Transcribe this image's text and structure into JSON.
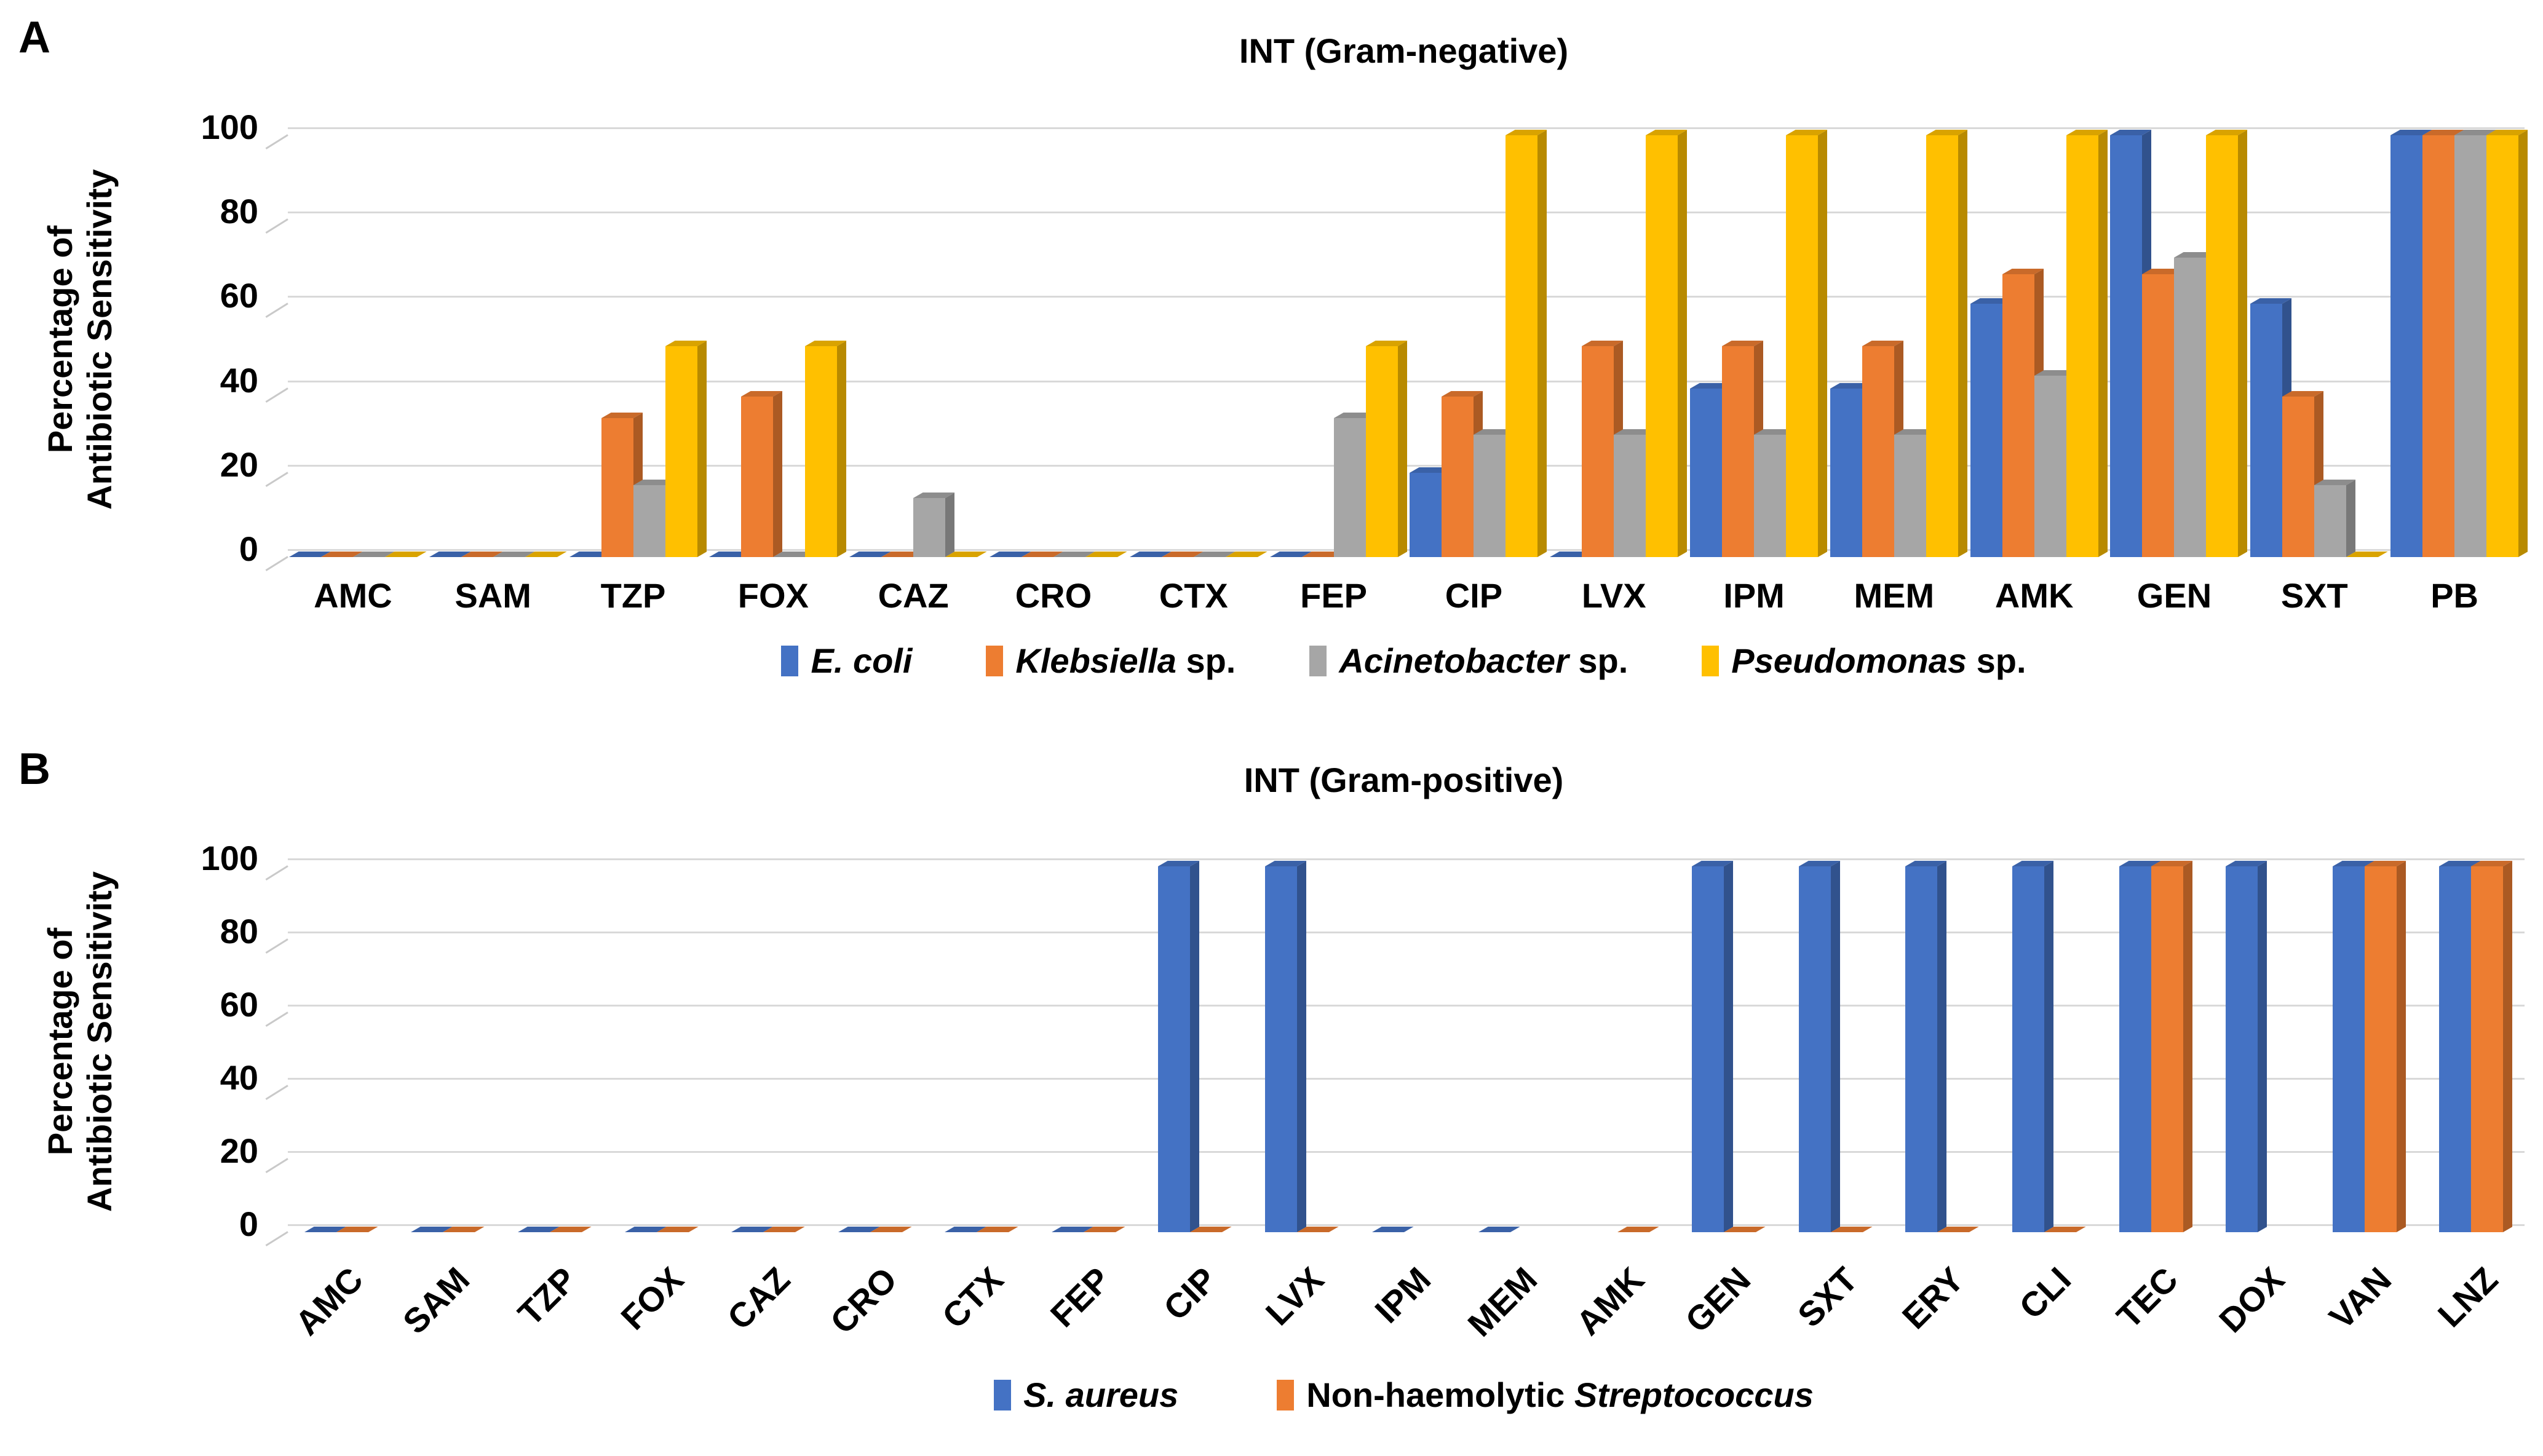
{
  "panels": [
    {
      "label": "A",
      "title": "INT (Gram-negative)",
      "y_axis_title_line1": "Percentage of",
      "y_axis_title_line2": "Antibiotic Sensitivity",
      "legend": [
        {
          "pre": "",
          "em": "E. coli",
          "post": ""
        },
        {
          "pre": "",
          "em": "Klebsiella",
          "post": " sp."
        },
        {
          "pre": "",
          "em": "Acinetobacter",
          "post": " sp."
        },
        {
          "pre": "",
          "em": "Pseudomonas",
          "post": " sp."
        }
      ],
      "chart_data": {
        "type": "bar",
        "title": "INT (Gram-negative)",
        "ylabel": "Percentage of Antibiotic Sensitivity",
        "xlabel": "",
        "ylim": [
          0,
          100
        ],
        "yticks": [
          0,
          20,
          40,
          60,
          80,
          100
        ],
        "grid": true,
        "legend_position": "bottom",
        "style": "3d-clustered-column",
        "categories": [
          "AMC",
          "SAM",
          "TZP",
          "FOX",
          "CAZ",
          "CRO",
          "CTX",
          "FEP",
          "CIP",
          "LVX",
          "IPM",
          "MEM",
          "AMK",
          "GEN",
          "SXT",
          "PB"
        ],
        "series": [
          {
            "name": "E. coli",
            "color": "#4472C4",
            "values": [
              0,
              0,
              0,
              0,
              0,
              0,
              0,
              0,
              20,
              0,
              40,
              40,
              60,
              100,
              60,
              100
            ]
          },
          {
            "name": "Klebsiella sp.",
            "color": "#ED7D31",
            "values": [
              0,
              0,
              33,
              38,
              0,
              0,
              0,
              0,
              38,
              50,
              50,
              50,
              67,
              67,
              38,
              100
            ]
          },
          {
            "name": "Acinetobacter sp.",
            "color": "#A6A6A6",
            "values": [
              0,
              0,
              17,
              0,
              14,
              0,
              0,
              33,
              29,
              29,
              29,
              29,
              43,
              71,
              17,
              100
            ]
          },
          {
            "name": "Pseudomonas sp.",
            "color": "#FFC000",
            "values": [
              0,
              0,
              50,
              50,
              0,
              0,
              0,
              50,
              100,
              100,
              100,
              100,
              100,
              100,
              0,
              100
            ]
          }
        ]
      }
    },
    {
      "label": "B",
      "title": "INT (Gram-positive)",
      "y_axis_title_line1": "Percentage of",
      "y_axis_title_line2": "Antibiotic Sensitivity",
      "legend": [
        {
          "pre": "",
          "em": "S. aureus",
          "post": ""
        },
        {
          "pre": "Non-haemolytic ",
          "em": "Streptococcus",
          "post": ""
        }
      ],
      "chart_data": {
        "type": "bar",
        "title": "INT (Gram-positive)",
        "ylabel": "Percentage of Antibiotic Sensitivity",
        "xlabel": "",
        "ylim": [
          0,
          100
        ],
        "yticks": [
          0,
          20,
          40,
          60,
          80,
          100
        ],
        "grid": true,
        "legend_position": "bottom",
        "style": "3d-clustered-column",
        "categories": [
          "AMC",
          "SAM",
          "TZP",
          "FOX",
          "CAZ",
          "CRO",
          "CTX",
          "FEP",
          "CIP",
          "LVX",
          "IPM",
          "MEM",
          "AMK",
          "GEN",
          "SXT",
          "ERY",
          "CLI",
          "TEC",
          "DOX",
          "VAN",
          "LNZ"
        ],
        "series": [
          {
            "name": "S. aureus",
            "color": "#4472C4",
            "values": [
              0,
              0,
              0,
              0,
              0,
              0,
              0,
              0,
              100,
              100,
              0,
              0,
              null,
              100,
              100,
              100,
              100,
              100,
              100,
              100,
              100
            ]
          },
          {
            "name": "Non-haemolytic Streptococcus",
            "color": "#ED7D31",
            "values": [
              0,
              0,
              0,
              0,
              0,
              0,
              0,
              0,
              0,
              0,
              null,
              null,
              0,
              0,
              0,
              0,
              0,
              100,
              null,
              100,
              100
            ]
          }
        ]
      }
    }
  ]
}
